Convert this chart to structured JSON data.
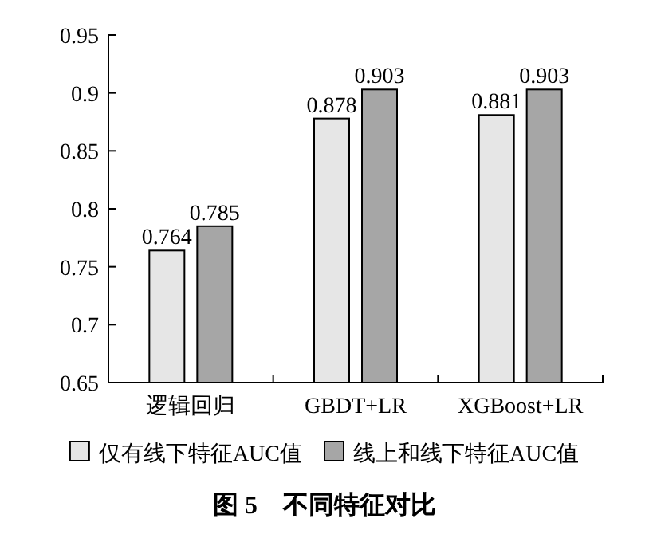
{
  "chart_data": {
    "type": "bar",
    "title": "图 5　不同特征对比",
    "categories": [
      "逻辑回归",
      "GBDT+LR",
      "XGBoost+LR"
    ],
    "series": [
      {
        "name": "仅有线下特征AUC值",
        "color": "#e6e6e6",
        "values": [
          0.764,
          0.878,
          0.881
        ]
      },
      {
        "name": "线上和线下特征AUC值",
        "color": "#a6a6a6",
        "values": [
          0.785,
          0.903,
          0.903
        ]
      }
    ],
    "ylim": [
      0.65,
      0.95
    ],
    "yticks": [
      0.65,
      0.7,
      0.75,
      0.8,
      0.85,
      0.9,
      0.95
    ],
    "data_labels": true,
    "legend": "bottom",
    "grid": false
  }
}
